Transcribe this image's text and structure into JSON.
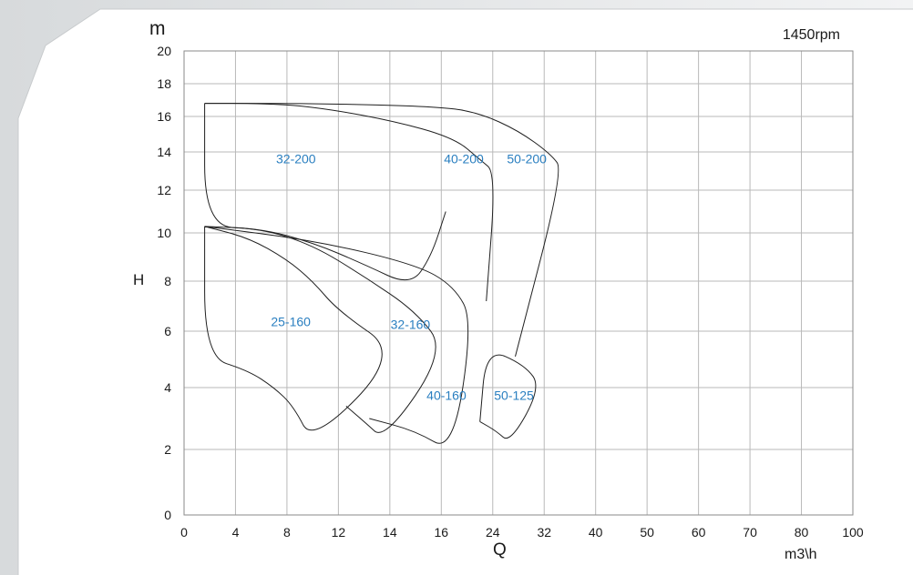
{
  "chart_data": {
    "type": "area",
    "title": "",
    "speed_label": "1450rpm",
    "y_unit": "m",
    "ylabel": "H",
    "xlabel": "Q",
    "x_unit": "m3\\h",
    "x_ticks": [
      0,
      4,
      8,
      12,
      14,
      16,
      24,
      32,
      40,
      50,
      60,
      70,
      80,
      100
    ],
    "y_ticks": [
      0,
      2,
      4,
      6,
      8,
      10,
      12,
      14,
      16,
      18,
      20
    ],
    "ylim": [
      0,
      20
    ],
    "grid": true,
    "label_color": "#2a7fc0",
    "regions": [
      {
        "name": "32-200",
        "boundary": [
          [
            1.6,
            16.8
          ],
          [
            1.6,
            10.3
          ],
          [
            6,
            10.2
          ],
          [
            10,
            9.6
          ],
          [
            13,
            8.7
          ],
          [
            14.8,
            7.8
          ],
          [
            15.6,
            9
          ],
          [
            16.7,
            11
          ]
        ],
        "label_at": [
          8.7,
          13.4
        ]
      },
      {
        "name": "40-200",
        "boundary": [
          [
            1.6,
            16.8
          ],
          [
            6,
            16.8
          ],
          [
            10,
            16.6
          ],
          [
            14,
            15.8
          ],
          [
            18,
            14.8
          ],
          [
            22,
            13.6
          ],
          [
            24.5,
            12.9
          ],
          [
            23,
            7.2
          ]
        ],
        "label_at": [
          19.5,
          13.4
        ]
      },
      {
        "name": "50-200",
        "boundary": [
          [
            1.6,
            16.8
          ],
          [
            10,
            16.8
          ],
          [
            16,
            16.6
          ],
          [
            22,
            16.2
          ],
          [
            28,
            15.2
          ],
          [
            33,
            13.9
          ],
          [
            35,
            13
          ],
          [
            27.5,
            5.1
          ]
        ],
        "label_at": [
          29.3,
          13.4
        ]
      },
      {
        "name": "25-160",
        "boundary": [
          [
            1.6,
            10.3
          ],
          [
            1.6,
            5.1
          ],
          [
            5,
            4.6
          ],
          [
            7,
            4
          ],
          [
            8.5,
            3.4
          ],
          [
            10,
            2.2
          ],
          [
            14.4,
            5.2
          ],
          [
            12,
            6.8
          ],
          [
            10,
            8
          ],
          [
            8,
            8.9
          ],
          [
            5,
            9.8
          ],
          [
            1.6,
            10.3
          ]
        ],
        "label_at": [
          8.3,
          6.2
        ]
      },
      {
        "name": "32-160",
        "boundary": [
          [
            12.3,
            3.4
          ],
          [
            13,
            2.9
          ],
          [
            13.8,
            2.3
          ],
          [
            16.7,
            5.3
          ],
          [
            15,
            6.8
          ],
          [
            13,
            8.2
          ],
          [
            10,
            9.5
          ],
          [
            6,
            10.2
          ],
          [
            1.6,
            10.3
          ]
        ],
        "label_at": [
          14.8,
          6.1
        ]
      },
      {
        "name": "40-160",
        "boundary": [
          [
            13.2,
            3
          ],
          [
            15,
            2.6
          ],
          [
            17.8,
            1.9
          ],
          [
            20.9,
            6.4
          ],
          [
            18,
            7.8
          ],
          [
            15,
            8.7
          ],
          [
            10,
            9.7
          ],
          [
            1.6,
            10.3
          ]
        ],
        "label_at": [
          16.8,
          3.6
        ]
      },
      {
        "name": "50-125",
        "boundary": [
          [
            22,
            2.9
          ],
          [
            24.5,
            2.6
          ],
          [
            26.7,
            2.2
          ],
          [
            31.5,
            4
          ],
          [
            29,
            4.8
          ],
          [
            23,
            5.4
          ],
          [
            22,
            2.9
          ]
        ],
        "label_at": [
          27.3,
          3.6
        ]
      }
    ]
  }
}
